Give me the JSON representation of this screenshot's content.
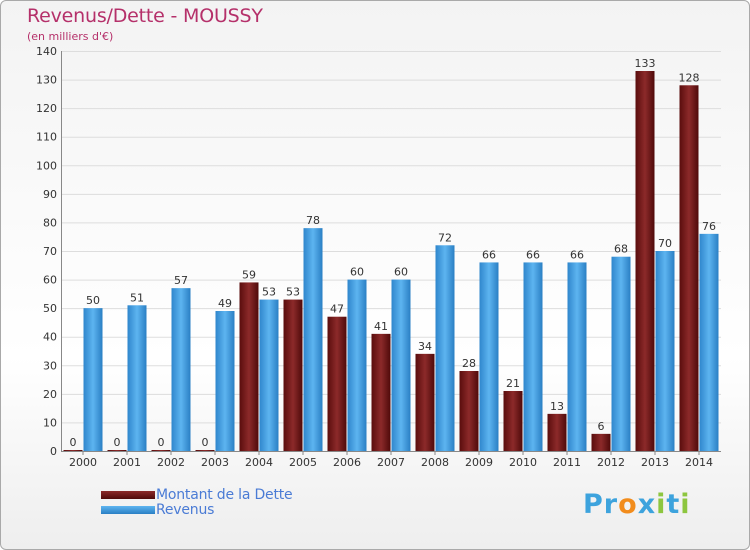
{
  "title": "Revenus/Dette - MOUSSY",
  "subtitle": "(en milliers d'€)",
  "legend": [
    {
      "label": "Montant de la Dette",
      "color": "#7a1212"
    },
    {
      "label": "Revenus",
      "color": "#4aa3e6"
    }
  ],
  "logo": {
    "text": "Proxiti",
    "colors": [
      "#3da3dd",
      "#3da3dd",
      "#f28c1c",
      "#3da3dd",
      "#8dc63f",
      "#3da3dd",
      "#8dc63f"
    ]
  },
  "chart_data": {
    "type": "bar",
    "categories": [
      "2000",
      "2001",
      "2002",
      "2003",
      "2004",
      "2005",
      "2006",
      "2007",
      "2008",
      "2009",
      "2010",
      "2011",
      "2012",
      "2013",
      "2014"
    ],
    "series": [
      {
        "name": "Montant de la Dette",
        "values": [
          0,
          0,
          0,
          0,
          59,
          53,
          47,
          41,
          34,
          28,
          21,
          13,
          6,
          133,
          128
        ]
      },
      {
        "name": "Revenus",
        "values": [
          50,
          51,
          57,
          49,
          53,
          78,
          60,
          60,
          72,
          66,
          66,
          66,
          68,
          70,
          76
        ]
      }
    ],
    "yticks": [
      0,
      10,
      20,
      30,
      40,
      50,
      60,
      70,
      80,
      90,
      100,
      110,
      120,
      130,
      140
    ],
    "ylim": [
      0,
      140
    ],
    "title": "Revenus/Dette - MOUSSY",
    "ylabel": "(en milliers d'€)",
    "grid": true
  }
}
